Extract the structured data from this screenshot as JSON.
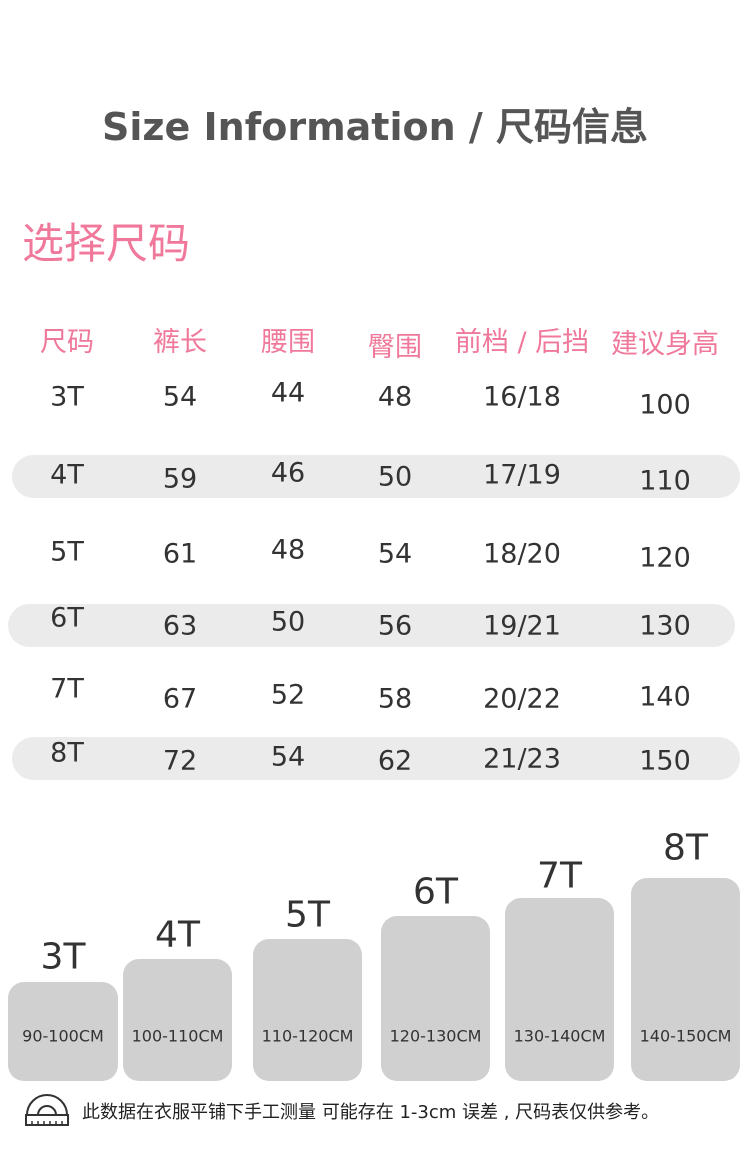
{
  "title": "Size Information / 尺码信息",
  "subtitle": "选择尺码",
  "colors": {
    "accent": "#f0789a",
    "row_highlight": "#ebebeb",
    "bar": "#d0d0d0"
  },
  "headers": [
    "尺码",
    "裤长",
    "腰围",
    "臀围",
    "前档 / 后挡",
    "建议身高"
  ],
  "rows": [
    [
      "3T",
      "54",
      "44",
      "48",
      "16/18",
      "100"
    ],
    [
      "4T",
      "59",
      "46",
      "50",
      "17/19",
      "110"
    ],
    [
      "5T",
      "61",
      "48",
      "54",
      "18/20",
      "120"
    ],
    [
      "6T",
      "63",
      "50",
      "56",
      "19/21",
      "130"
    ],
    [
      "7T",
      "67",
      "52",
      "58",
      "20/22",
      "140"
    ],
    [
      "8T",
      "72",
      "54",
      "62",
      "21/23",
      "150"
    ]
  ],
  "bars": [
    {
      "size": "3T",
      "range": "90-100CM"
    },
    {
      "size": "4T",
      "range": "100-110CM"
    },
    {
      "size": "5T",
      "range": "110-120CM"
    },
    {
      "size": "6T",
      "range": "120-130CM"
    },
    {
      "size": "7T",
      "range": "130-140CM"
    },
    {
      "size": "8T",
      "range": "140-150CM"
    }
  ],
  "note": {
    "icon": "protractor-icon",
    "text": "此数据在衣服平铺下手工测量 可能存在 1-3cm 误差 , 尺码表仅供参考。"
  }
}
